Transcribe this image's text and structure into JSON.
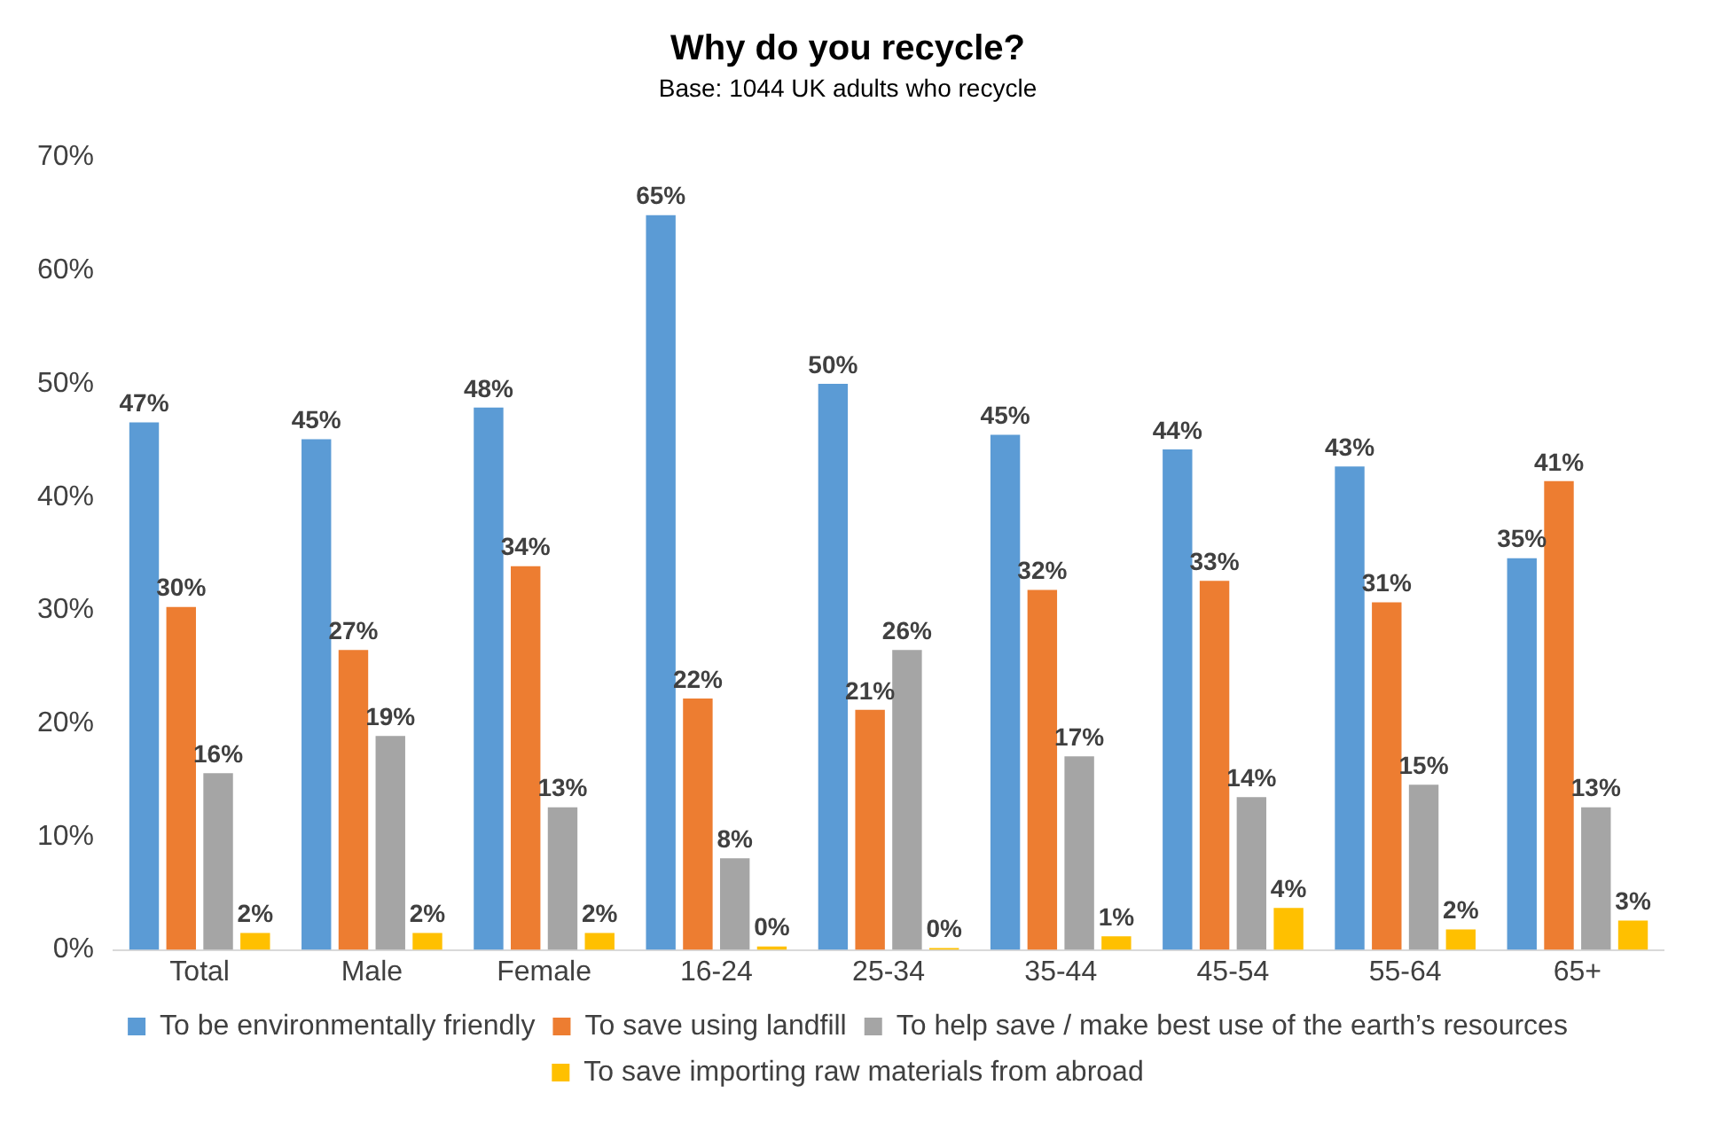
{
  "chart_data": {
    "type": "bar",
    "title": "Why do you recycle?",
    "subtitle": "Base: 1044 UK adults who recycle",
    "categories": [
      "Total",
      "Male",
      "Female",
      "16-24",
      "25-34",
      "35-44",
      "45-54",
      "55-64",
      "65+"
    ],
    "series": [
      {
        "name": "To be environmentally friendly",
        "color": "#5b9bd5",
        "values": [
          46.6,
          45.1,
          47.9,
          64.9,
          50,
          45.5,
          44.2,
          42.7,
          34.6
        ],
        "value_labels": [
          "47%",
          "45%",
          "48%",
          "65%",
          "50%",
          "45%",
          "44%",
          "43%",
          "35%"
        ]
      },
      {
        "name": "To save using landfill",
        "color": "#ed7d31",
        "values": [
          30.3,
          26.5,
          33.9,
          22.2,
          21.2,
          31.8,
          32.6,
          30.7,
          41.4
        ],
        "value_labels": [
          "30%",
          "27%",
          "34%",
          "22%",
          "21%",
          "32%",
          "33%",
          "31%",
          "41%"
        ]
      },
      {
        "name": "To help save / make best use of the earth’s resources",
        "color": "#a5a5a5",
        "values": [
          15.6,
          18.9,
          12.6,
          8.1,
          26.5,
          17.1,
          13.5,
          14.6,
          12.6
        ],
        "value_labels": [
          "16%",
          "19%",
          "13%",
          "8%",
          "26%",
          "17%",
          "14%",
          "15%",
          "13%"
        ]
      },
      {
        "name": "To save importing raw materials from abroad",
        "color": "#ffc000",
        "values": [
          1.5,
          1.5,
          1.5,
          0.3,
          0,
          1.2,
          3.7,
          1.8,
          2.6
        ],
        "value_labels": [
          "2%",
          "2%",
          "2%",
          "0%",
          "0%",
          "1%",
          "4%",
          "2%",
          "3%"
        ]
      }
    ],
    "ylim": [
      0,
      70
    ],
    "yticks": [
      {
        "value": 0,
        "label": "0%"
      },
      {
        "value": 10,
        "label": "10%"
      },
      {
        "value": 20,
        "label": "20%"
      },
      {
        "value": 30,
        "label": "30%"
      },
      {
        "value": 40,
        "label": "40%"
      },
      {
        "value": 50,
        "label": "50%"
      },
      {
        "value": 60,
        "label": "60%"
      },
      {
        "value": 70,
        "label": "70%"
      }
    ],
    "grid": false,
    "legend": "bottom"
  }
}
